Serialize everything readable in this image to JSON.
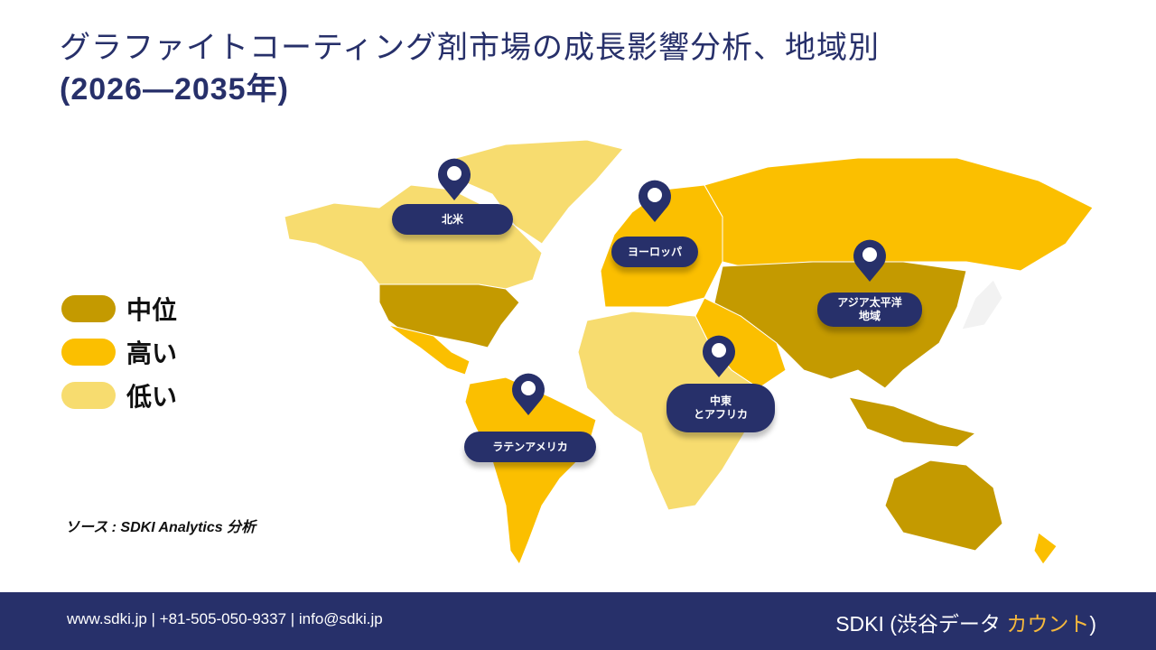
{
  "header": {
    "title_line1": "グラファイトコーティング剤市場の成長影響分析、地域別",
    "title_line2": "(2026—2035年)"
  },
  "legend": [
    {
      "label": "中位",
      "color": "#c49a00"
    },
    {
      "label": "高い",
      "color": "#fbbf00"
    },
    {
      "label": "低い",
      "color": "#f7dc6f"
    }
  ],
  "regions": {
    "north_america": {
      "label": "北米",
      "level": "低い"
    },
    "europe": {
      "label": "ヨーロッパ",
      "level": "高い"
    },
    "asia_pacific": {
      "label": "アジア太平洋\n地域",
      "level": "中位"
    },
    "middle_east_africa": {
      "label": "中東\nとアフリカ",
      "level": "低い"
    },
    "latin_america": {
      "label": "ラテンアメリカ",
      "level": "高い"
    }
  },
  "source": "ソース : SDKI Analytics 分析",
  "footer": {
    "contact": "www.sdki.jp | +81-505-050-9337 | info@sdki.jp",
    "brand_prefix": "SDKI (渋谷データ ",
    "brand_accent": "カウント",
    "brand_suffix": ")"
  },
  "colors": {
    "navy": "#27306a",
    "medium": "#c49a00",
    "high": "#fbbf00",
    "low": "#f7dc6f"
  }
}
